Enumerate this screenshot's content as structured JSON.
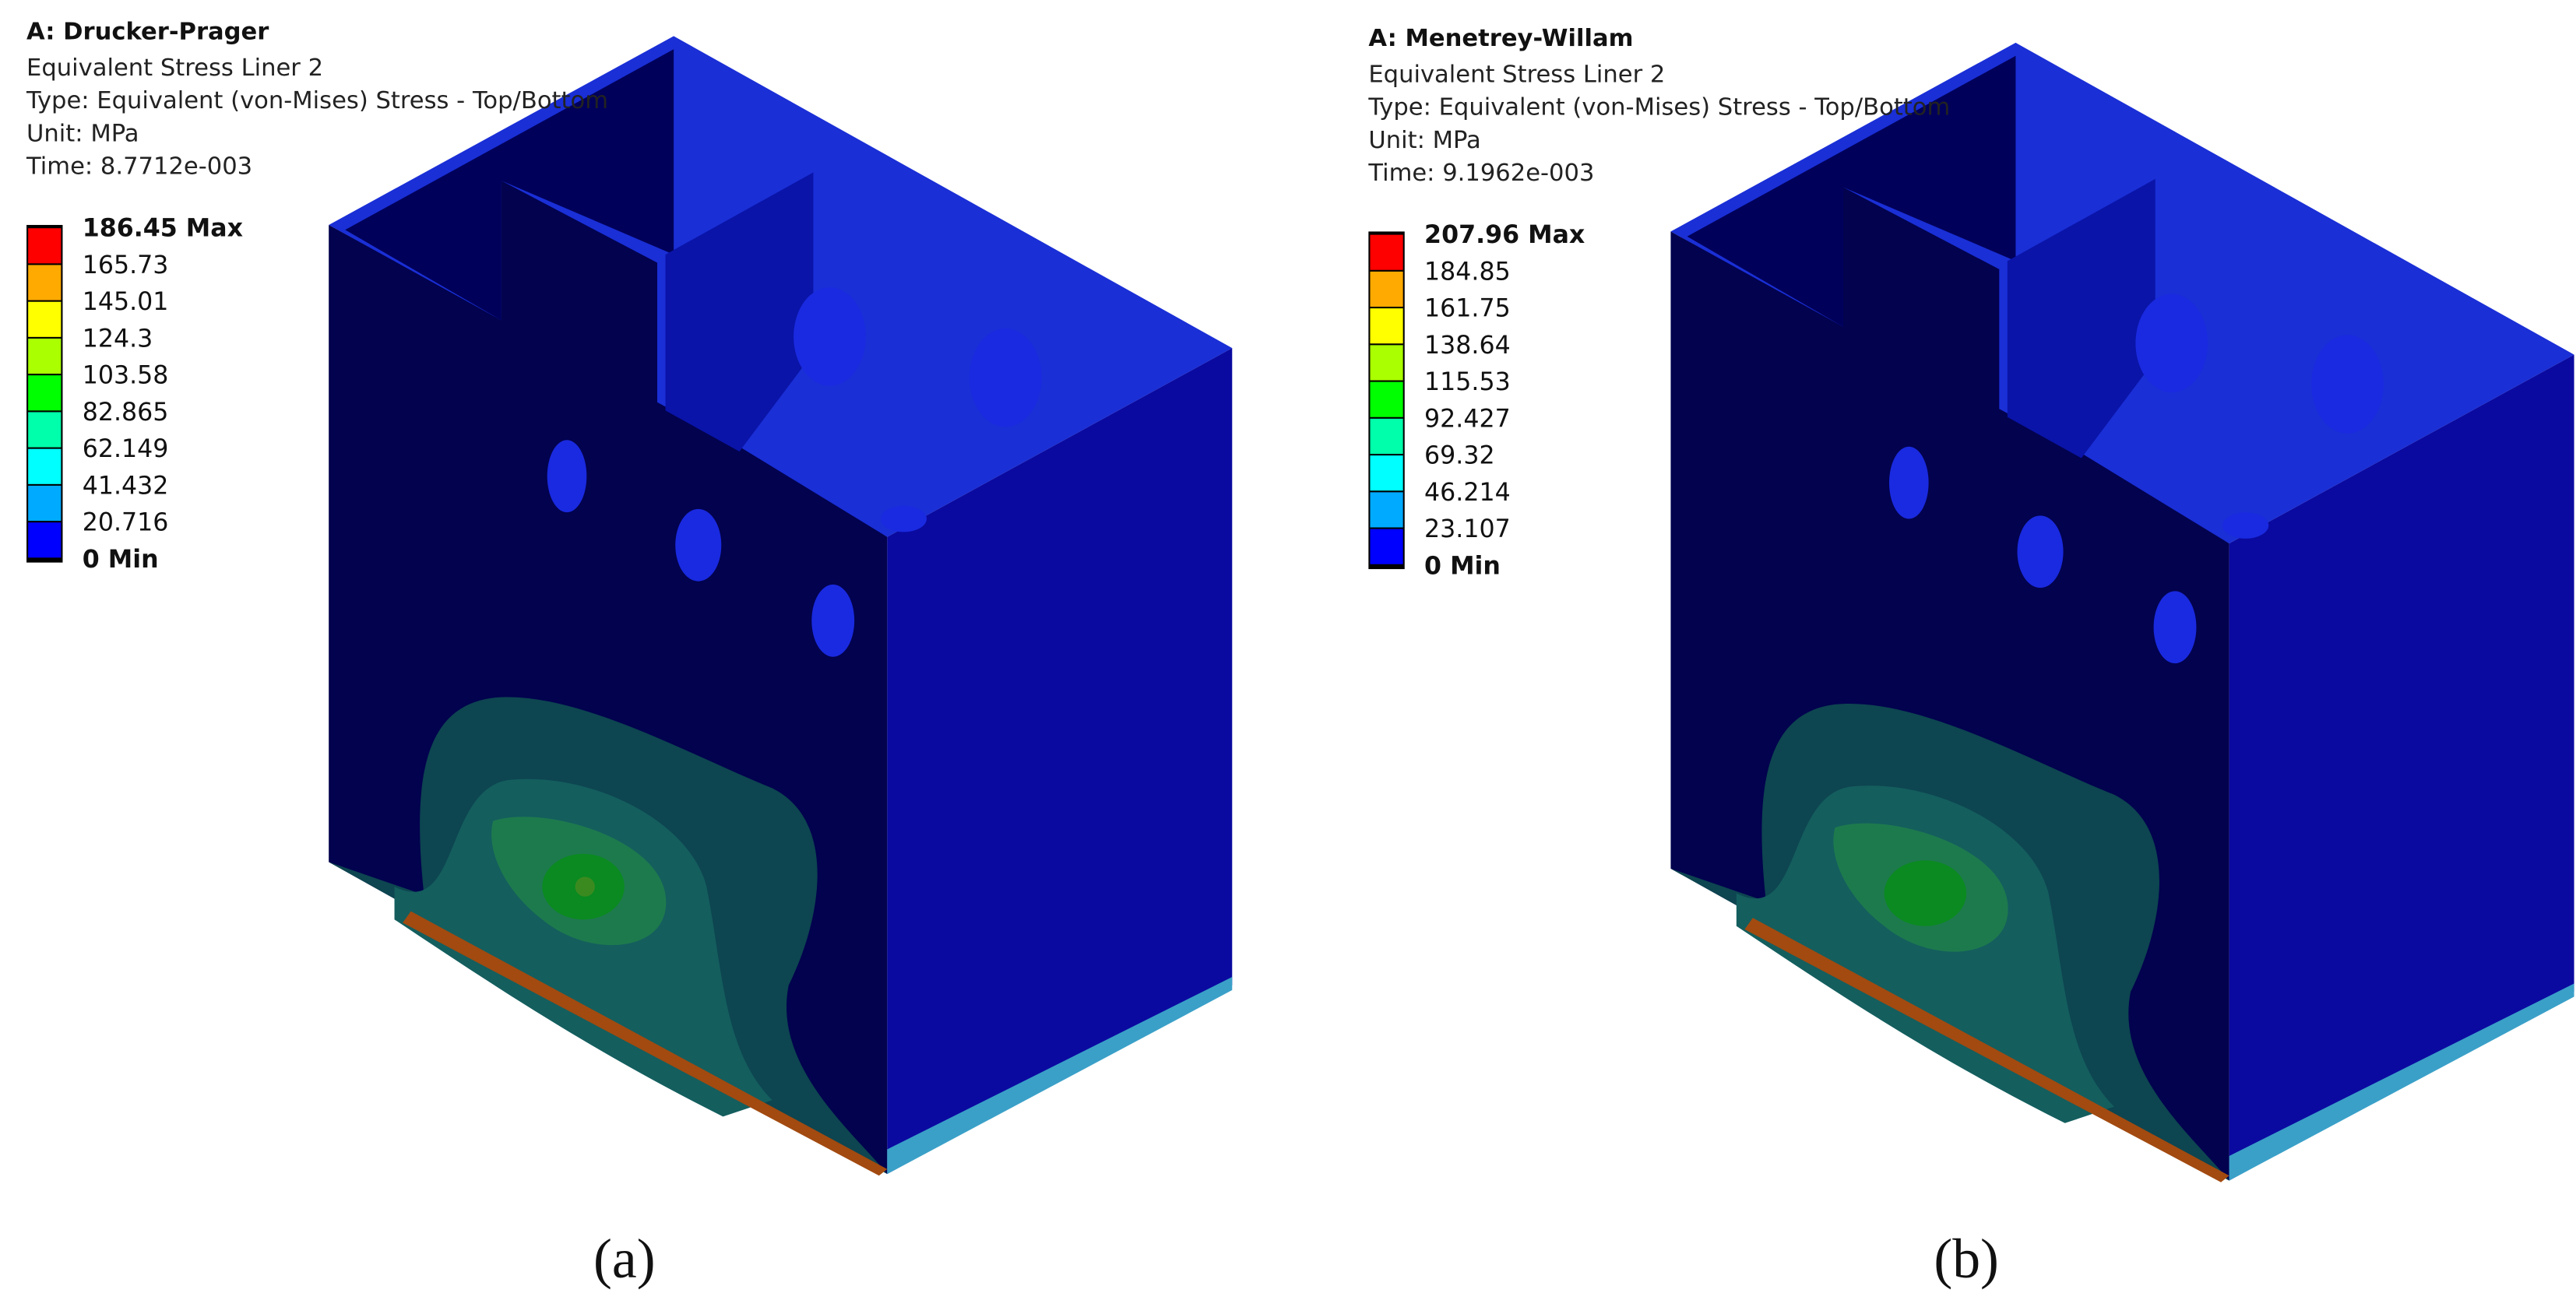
{
  "panels": [
    {
      "title": "A: Drucker-Prager",
      "lines": [
        "Equivalent Stress Liner 2",
        "Type: Equivalent (von-Mises) Stress - Top/Bottom",
        "Unit: MPa",
        "Time: 8.7712e-003"
      ],
      "legend": [
        "186.45 Max",
        "165.73",
        "145.01",
        "124.3",
        "103.58",
        "82.865",
        "62.149",
        "41.432",
        "20.716",
        "0 Min"
      ],
      "caption": "(a)"
    },
    {
      "title": "A: Menetrey-Willam",
      "lines": [
        "Equivalent Stress Liner 2",
        "Type: Equivalent (von-Mises) Stress - Top/Bottom",
        "Unit: MPa",
        "Time: 9.1962e-003"
      ],
      "legend": [
        "207.96 Max",
        "184.85",
        "161.75",
        "138.64",
        "115.53",
        "92.427",
        "69.32",
        "46.214",
        "23.107",
        "0 Min"
      ],
      "caption": "(b)"
    }
  ]
}
